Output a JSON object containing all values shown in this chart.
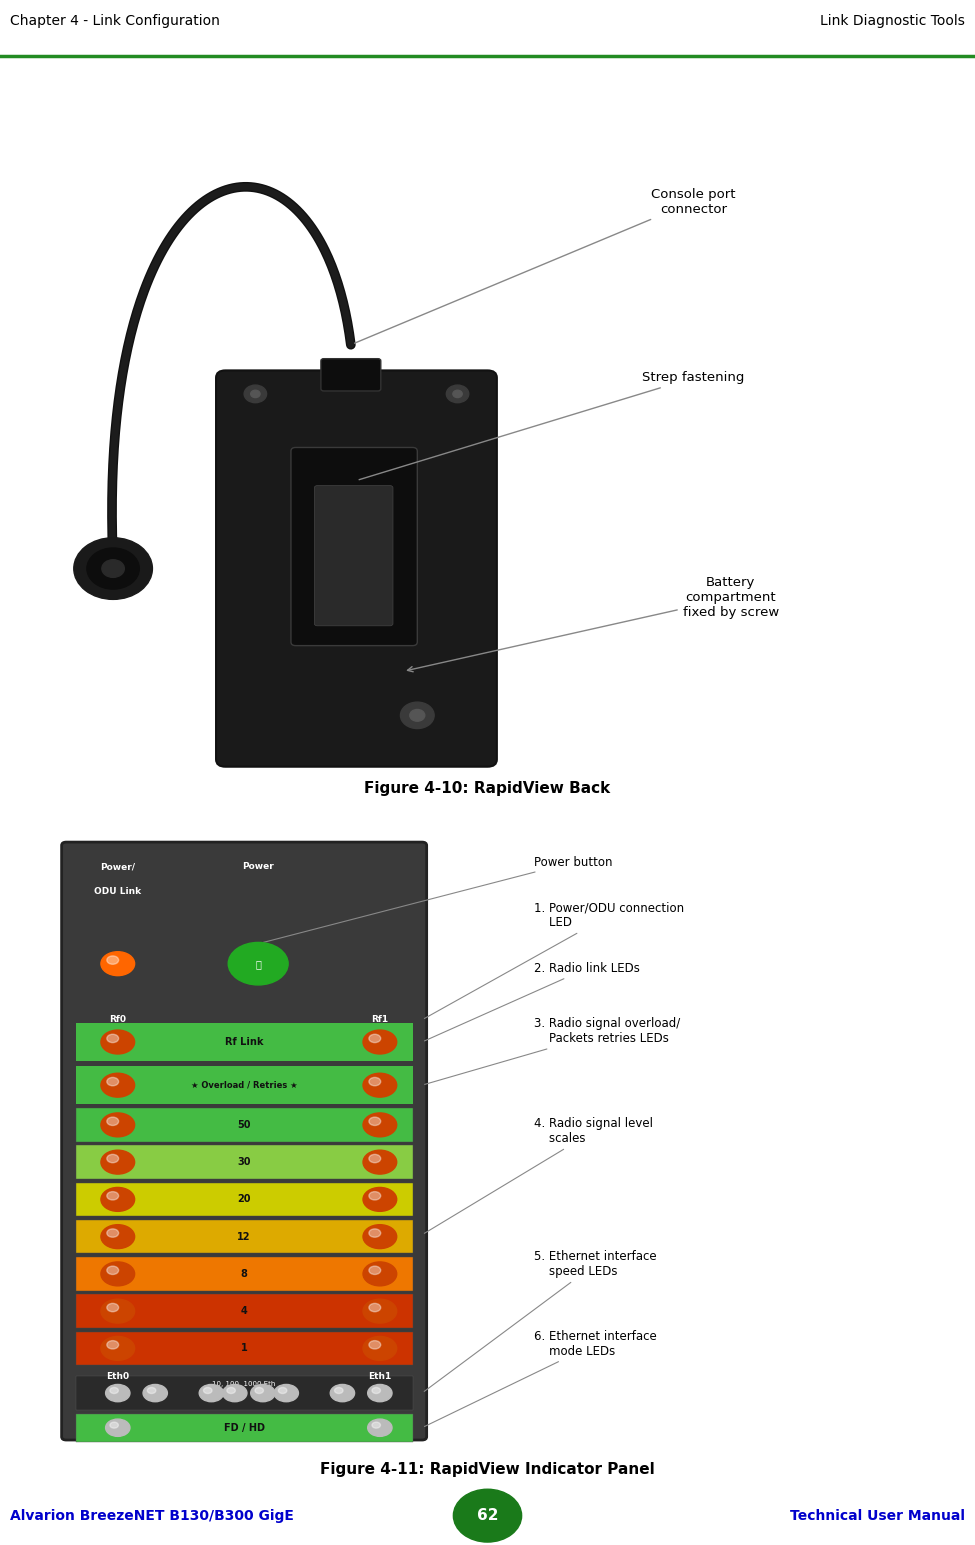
{
  "page_bg": "#e8e8e8",
  "header_left": "Chapter 4 - Link Configuration",
  "header_right": "Link Diagnostic Tools",
  "header_line_color": "#228B22",
  "footer_left": "Alvarion BreezeNET B130/B300 GigE",
  "footer_right": "Technical User Manual",
  "footer_page": "62",
  "footer_text_color": "#0000cc",
  "footer_page_bg": "#1a7a1a",
  "fig1_caption": "Figure 4-10: RapidView Back",
  "fig2_caption": "Figure 4-11: RapidView Indicator Panel"
}
